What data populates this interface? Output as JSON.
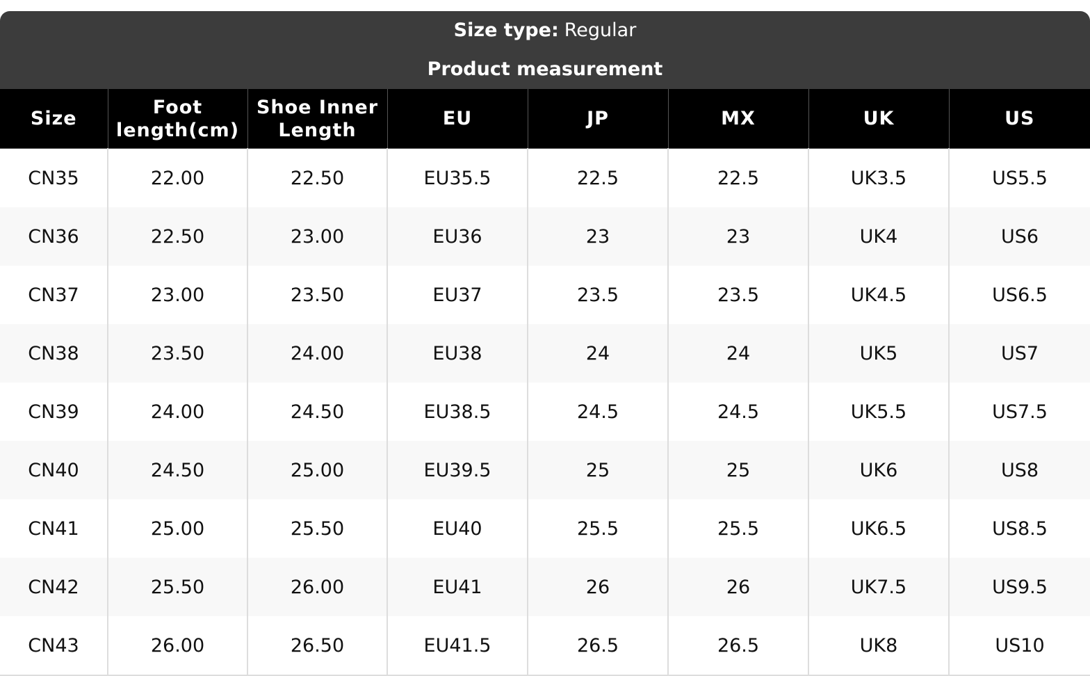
{
  "header": {
    "label": "Size type:",
    "value": "Regular",
    "subtitle": "Product measurement"
  },
  "table": {
    "columns": [
      "Size",
      "Foot length(cm)",
      "Shoe Inner Length",
      "EU",
      "JP",
      "MX",
      "UK",
      "US"
    ],
    "rows": [
      [
        "CN35",
        "22.00",
        "22.50",
        "EU35.5",
        "22.5",
        "22.5",
        "UK3.5",
        "US5.5"
      ],
      [
        "CN36",
        "22.50",
        "23.00",
        "EU36",
        "23",
        "23",
        "UK4",
        "US6"
      ],
      [
        "CN37",
        "23.00",
        "23.50",
        "EU37",
        "23.5",
        "23.5",
        "UK4.5",
        "US6.5"
      ],
      [
        "CN38",
        "23.50",
        "24.00",
        "EU38",
        "24",
        "24",
        "UK5",
        "US7"
      ],
      [
        "CN39",
        "24.00",
        "24.50",
        "EU38.5",
        "24.5",
        "24.5",
        "UK5.5",
        "US7.5"
      ],
      [
        "CN40",
        "24.50",
        "25.00",
        "EU39.5",
        "25",
        "25",
        "UK6",
        "US8"
      ],
      [
        "CN41",
        "25.00",
        "25.50",
        "EU40",
        "25.5",
        "25.5",
        "UK6.5",
        "US8.5"
      ],
      [
        "CN42",
        "25.50",
        "26.00",
        "EU41",
        "26",
        "26",
        "UK7.5",
        "US9.5"
      ],
      [
        "CN43",
        "26.00",
        "26.50",
        "EU41.5",
        "26.5",
        "26.5",
        "UK8",
        "US10"
      ]
    ]
  }
}
